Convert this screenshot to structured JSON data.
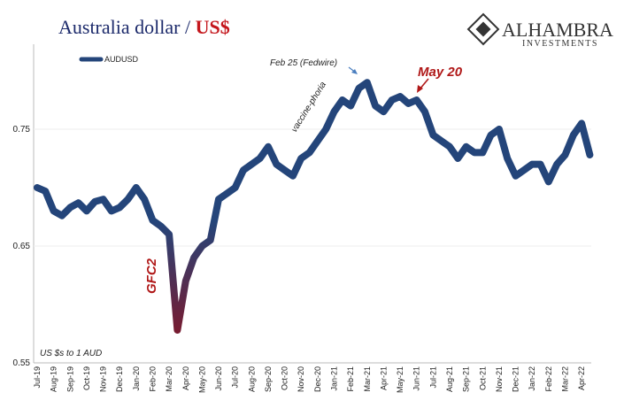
{
  "chart_data": {
    "type": "line",
    "title": "Australia dollar / ",
    "title_highlight": "US$",
    "logo": {
      "name": "ALHAMBRA",
      "sub": "INVESTMENTS"
    },
    "categories": [
      "Jul-19",
      null,
      "Aug-19",
      null,
      "Sep-19",
      null,
      "Oct-19",
      null,
      "Nov-19",
      null,
      "Dec-19",
      null,
      "Jan-20",
      null,
      "Feb-20",
      null,
      "Mar-20",
      null,
      "Apr-20",
      null,
      "May-20",
      null,
      "Jun-20",
      null,
      "Jul-20",
      null,
      "Aug-20",
      null,
      "Sep-20",
      null,
      "Oct-20",
      null,
      "Nov-20",
      null,
      "Dec-20",
      null,
      "Jan-21",
      null,
      "Feb-21",
      null,
      "Mar-21",
      null,
      "Apr-21",
      null,
      "May-21",
      null,
      "Jun-21",
      null,
      "Jul-21",
      null,
      "Aug-21",
      null,
      "Sep-21",
      null,
      "Oct-21",
      null,
      "Nov-21",
      null,
      "Dec-21",
      null,
      "Jan-22",
      null,
      "Feb-22",
      null,
      "Mar-22",
      null,
      "Apr-22",
      null
    ],
    "series": [
      {
        "name": "AUDUSD",
        "color": "#24457a",
        "low_color": "#7a1a2e",
        "values": [
          0.7,
          0.697,
          0.68,
          0.676,
          0.683,
          0.687,
          0.68,
          0.688,
          0.69,
          0.68,
          0.683,
          0.69,
          0.7,
          0.69,
          0.672,
          0.667,
          0.66,
          0.578,
          0.62,
          0.64,
          0.65,
          0.655,
          0.69,
          0.695,
          0.7,
          0.715,
          0.72,
          0.725,
          0.735,
          0.72,
          0.715,
          0.71,
          0.725,
          0.73,
          0.74,
          0.75,
          0.765,
          0.775,
          0.77,
          0.785,
          0.79,
          0.77,
          0.765,
          0.775,
          0.778,
          0.772,
          0.775,
          0.765,
          0.745,
          0.74,
          0.735,
          0.725,
          0.735,
          0.73,
          0.73,
          0.745,
          0.75,
          0.725,
          0.71,
          0.715,
          0.72,
          0.72,
          0.705,
          0.72,
          0.728,
          0.745,
          0.755,
          0.728
        ]
      }
    ],
    "ylim": [
      0.55,
      0.82
    ],
    "yticks": [
      0.55,
      0.65,
      0.75
    ],
    "grid": true,
    "legend": "top-left",
    "annotations": {
      "gfc": "GFC2",
      "fedwire": "Feb 25 (Fedwire)",
      "may": "May 20",
      "vaccine": "vaccine-phoria",
      "units": "US $s to 1 AUD"
    }
  }
}
